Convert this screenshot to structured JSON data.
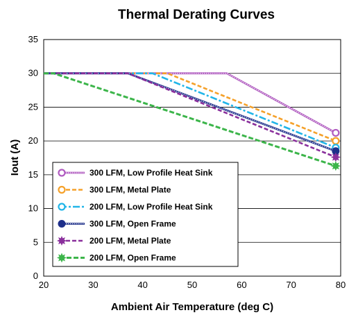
{
  "chart_data": {
    "type": "line",
    "title": "Thermal Derating Curves",
    "xlabel": "Ambient Air Temperature (deg C)",
    "ylabel": "Iout (A)",
    "xlim": [
      20,
      80
    ],
    "ylim": [
      0,
      35
    ],
    "xticks": [
      20,
      30,
      40,
      50,
      60,
      70,
      80
    ],
    "yticks": [
      0,
      5,
      10,
      15,
      20,
      25,
      30,
      35
    ],
    "grid": "horizontal",
    "legend_position": "lower-left",
    "series": [
      {
        "name": "300 LFM, Low Profile Heat Sink",
        "color": "#b05cc0",
        "style": "dotted-double",
        "marker": "open-circle",
        "points": [
          [
            20,
            30
          ],
          [
            57,
            30
          ],
          [
            79,
            21.2
          ]
        ]
      },
      {
        "name": "300 LFM, Metal Plate",
        "color": "#f5a12a",
        "style": "dashed",
        "marker": "open-circle",
        "points": [
          [
            20,
            30
          ],
          [
            45,
            30
          ],
          [
            79,
            20
          ]
        ]
      },
      {
        "name": "200 LFM, Low Profile Heat Sink",
        "color": "#21b5e8",
        "style": "dash-dot",
        "marker": "open-circle",
        "points": [
          [
            20,
            30
          ],
          [
            42,
            30
          ],
          [
            79,
            19
          ]
        ]
      },
      {
        "name": "300 LFM, Open Frame",
        "color": "#1e2f8a",
        "style": "dotted-double",
        "marker": "filled-circle",
        "points": [
          [
            20,
            30
          ],
          [
            37,
            30
          ],
          [
            79,
            18.5
          ]
        ]
      },
      {
        "name": "200 LFM, Metal Plate",
        "color": "#8a2f9c",
        "style": "dashed",
        "marker": "filled-star",
        "points": [
          [
            20,
            30
          ],
          [
            37,
            30
          ],
          [
            79,
            17.6
          ]
        ]
      },
      {
        "name": "200 LFM, Open Frame",
        "color": "#3cb54a",
        "style": "dashed-bold",
        "marker": "filled-star",
        "points": [
          [
            20,
            30
          ],
          [
            22,
            30
          ],
          [
            79,
            16.3
          ]
        ]
      }
    ]
  }
}
